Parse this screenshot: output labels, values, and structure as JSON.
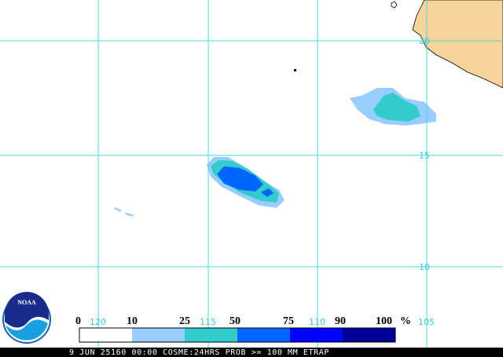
{
  "map": {
    "lat_labels": [
      "20",
      "15",
      "10"
    ],
    "lon_labels": [
      "120",
      "115",
      "110",
      "105"
    ]
  },
  "logo": "NOAA",
  "legend": {
    "labels": [
      "0",
      "10",
      "25",
      "50",
      "75",
      "90",
      "100"
    ],
    "unit": "%"
  },
  "footer": "9 JUN 25160 00:00 COSME:24HRS PROB >= 100 MM ETRAP"
}
